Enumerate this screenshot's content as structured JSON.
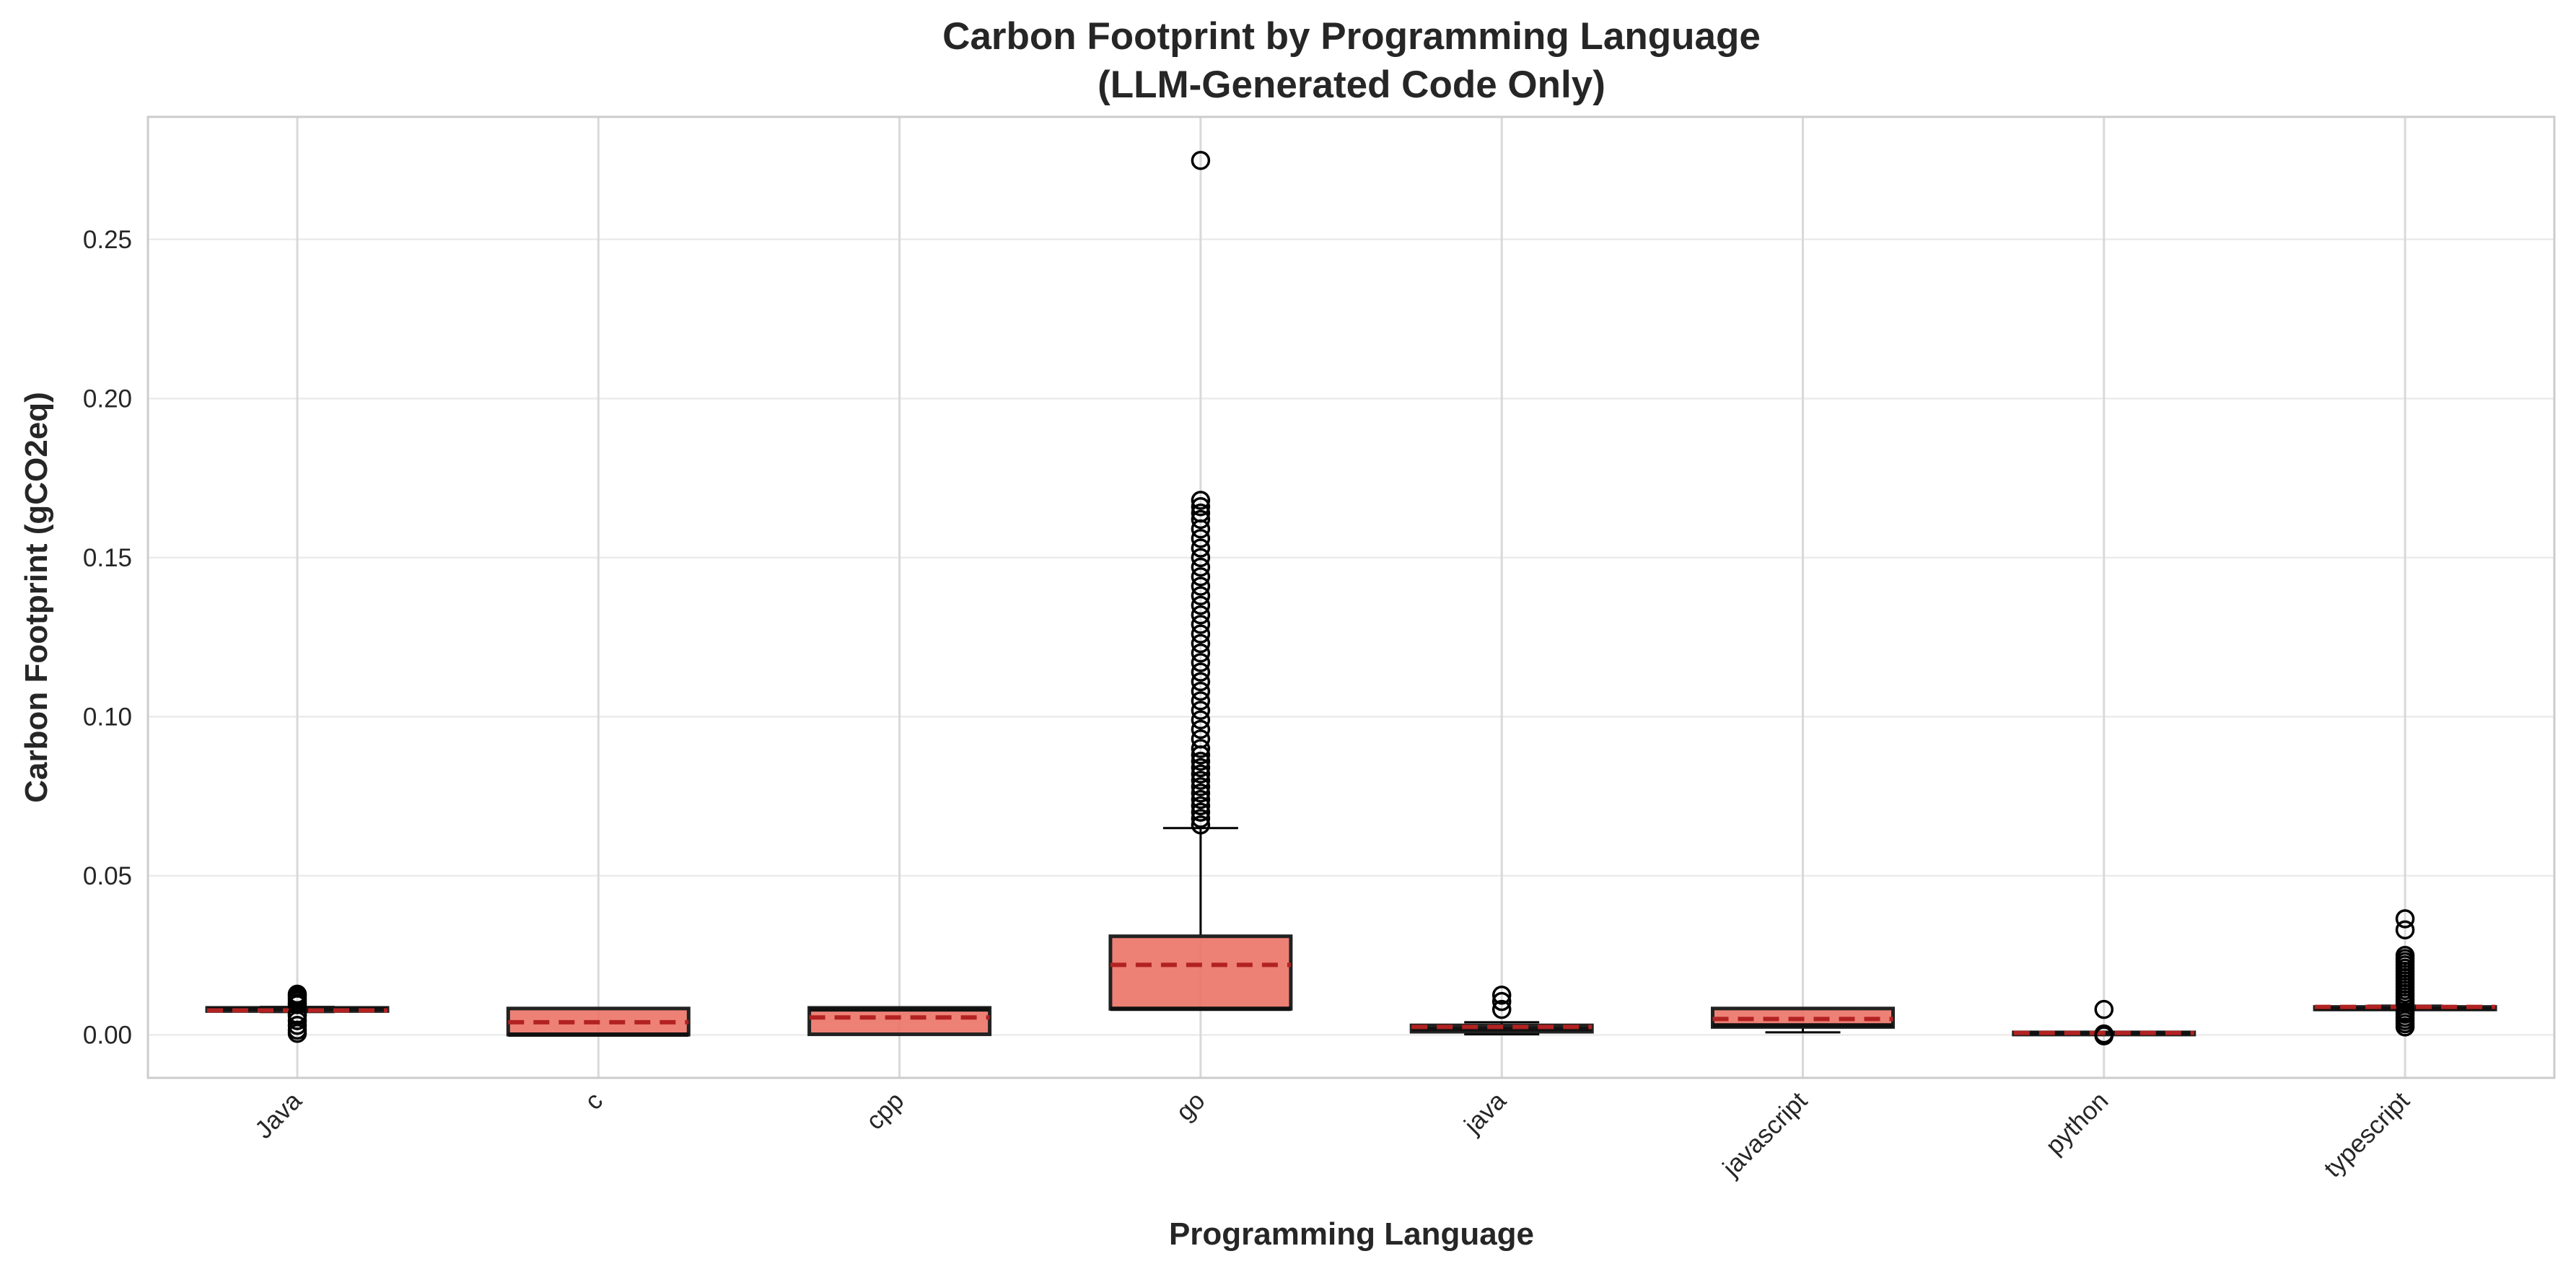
{
  "chart_data": {
    "type": "box",
    "title": [
      "Carbon Footprint by Programming Language",
      "(LLM-Generated Code Only)"
    ],
    "xlabel": "Programming Language",
    "ylabel": "Carbon Footprint (gCO2eq)",
    "ylim": [
      -0.0135,
      0.2885
    ],
    "yticks": [
      0.0,
      0.05,
      0.1,
      0.15,
      0.2,
      0.25
    ],
    "ytick_labels": [
      "0.00",
      "0.05",
      "0.10",
      "0.15",
      "0.20",
      "0.25"
    ],
    "grid": true,
    "colors": {
      "box_fill": "#ec7063",
      "box_edge": "#222222",
      "median": "#111111",
      "mean_line": "#b22222",
      "grid": "#d9d9d9",
      "frame": "#cccccc"
    },
    "categories": [
      "Java",
      "c",
      "cpp",
      "go",
      "java",
      "javascript",
      "python",
      "typescript"
    ],
    "series": [
      {
        "category": "Java",
        "q1": 0.0075,
        "median": 0.0082,
        "q3": 0.0085,
        "whisker_low": 0.0072,
        "whisker_high": 0.0088,
        "mean": 0.0077,
        "outliers": [
          0.0005,
          0.0015,
          0.003,
          0.0045,
          0.006,
          0.0065,
          0.0095,
          0.01,
          0.0108,
          0.0115,
          0.0122,
          0.0128
        ]
      },
      {
        "category": "c",
        "q1": 0.0001,
        "median": 0.0001,
        "q3": 0.0083,
        "whisker_low": 0.0001,
        "whisker_high": 0.0083,
        "mean": 0.004,
        "outliers": []
      },
      {
        "category": "cpp",
        "q1": 0.0002,
        "median": 0.008,
        "q3": 0.0085,
        "whisker_low": 0.0002,
        "whisker_high": 0.0085,
        "mean": 0.0055,
        "outliers": []
      },
      {
        "category": "go",
        "q1": 0.0082,
        "median": 0.0082,
        "q3": 0.031,
        "whisker_low": 0.0082,
        "whisker_high": 0.065,
        "mean": 0.022,
        "outliers": [
          0.066,
          0.068,
          0.07,
          0.072,
          0.074,
          0.076,
          0.078,
          0.08,
          0.082,
          0.084,
          0.086,
          0.088,
          0.09,
          0.093,
          0.096,
          0.099,
          0.102,
          0.105,
          0.108,
          0.111,
          0.114,
          0.117,
          0.12,
          0.123,
          0.126,
          0.129,
          0.132,
          0.135,
          0.138,
          0.141,
          0.144,
          0.147,
          0.15,
          0.153,
          0.156,
          0.159,
          0.162,
          0.164,
          0.166,
          0.168,
          0.2748
        ]
      },
      {
        "category": "java",
        "q1": 0.001,
        "median": 0.0018,
        "q3": 0.003,
        "whisker_low": 0.0002,
        "whisker_high": 0.004,
        "mean": 0.0025,
        "outliers": [
          0.008,
          0.0105,
          0.0125
        ]
      },
      {
        "category": "javascript",
        "q1": 0.0025,
        "median": 0.003,
        "q3": 0.0083,
        "whisker_low": 0.0008,
        "whisker_high": 0.0083,
        "mean": 0.005,
        "outliers": []
      },
      {
        "category": "python",
        "q1": 0.0002,
        "median": 0.0005,
        "q3": 0.0008,
        "whisker_low": 0.0001,
        "whisker_high": 0.001,
        "mean": 0.0006,
        "outliers": [
          -0.0003,
          0.0003,
          0.008
        ]
      },
      {
        "category": "typescript",
        "q1": 0.008,
        "median": 0.0082,
        "q3": 0.0088,
        "whisker_low": 0.0078,
        "whisker_high": 0.0092,
        "mean": 0.0088,
        "outliers": [
          0.0025,
          0.0035,
          0.0045,
          0.0055,
          0.0065,
          0.0072,
          0.01,
          0.011,
          0.012,
          0.013,
          0.014,
          0.015,
          0.016,
          0.017,
          0.018,
          0.019,
          0.02,
          0.021,
          0.022,
          0.023,
          0.024,
          0.025,
          0.033,
          0.0365
        ]
      }
    ]
  }
}
